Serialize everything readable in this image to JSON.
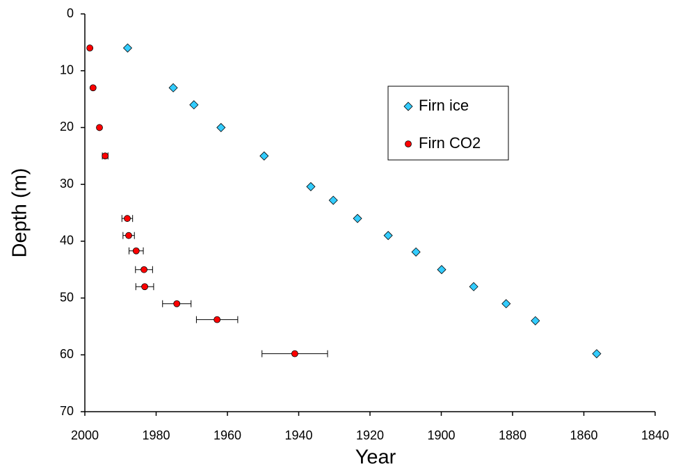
{
  "chart_data": {
    "type": "scatter",
    "x_label": "Year",
    "y_label": "Depth (m)",
    "xlim": [
      2000,
      1840
    ],
    "xticks": [
      2000,
      1980,
      1960,
      1940,
      1920,
      1900,
      1880,
      1860,
      1840
    ],
    "ylim": [
      0,
      70
    ],
    "yticks": [
      0,
      10,
      20,
      30,
      40,
      50,
      60,
      70
    ],
    "x_reversed": true,
    "y_reversed": true,
    "grid": false,
    "legend": "upper right",
    "series": [
      {
        "name": "Firn ice",
        "color": "#33ccff",
        "marker": "diamond",
        "x": [
          1988,
          1975.2,
          1969.4,
          1961.8,
          1949.7,
          1936.6,
          1930.3,
          1923.5,
          1914.9,
          1907.1,
          1899.9,
          1890.9,
          1881.8,
          1873.6,
          1856.4
        ],
        "values": [
          6,
          13,
          16,
          20,
          25,
          30.4,
          32.8,
          36,
          39,
          41.9,
          45,
          48,
          51,
          54,
          59.8
        ]
      },
      {
        "name": "Firn CO2",
        "color": "#ff0000",
        "marker": "circle",
        "x": [
          1998.6,
          1997.7,
          1995.9,
          1994.3,
          1988.1,
          1987.7,
          1985.6,
          1983.4,
          1983.2,
          1974.2,
          1962.9,
          1941.1
        ],
        "values": [
          6,
          13,
          20,
          25,
          36,
          39,
          41.7,
          45,
          48,
          51,
          53.8,
          59.8
        ],
        "xerr": [
          null,
          null,
          null,
          0.8,
          1.5,
          1.6,
          2,
          2.4,
          2.5,
          4,
          5.8,
          9.2
        ]
      }
    ]
  }
}
